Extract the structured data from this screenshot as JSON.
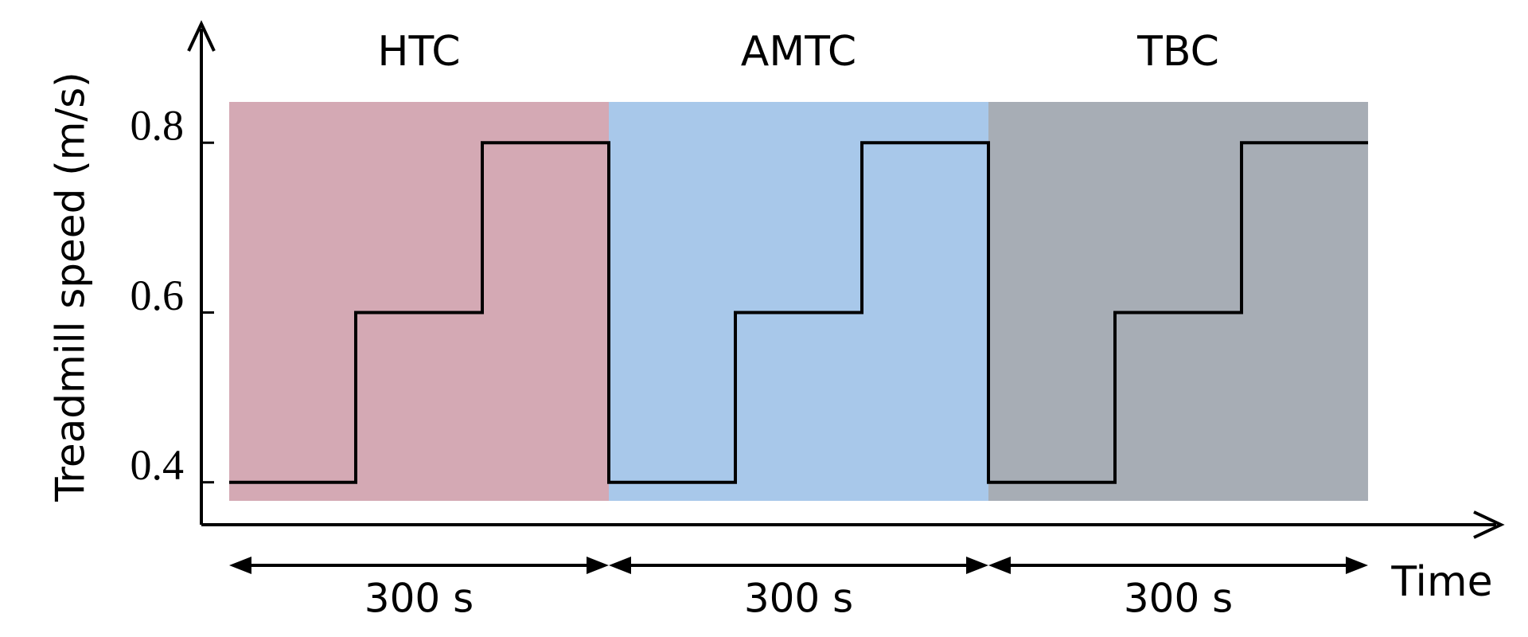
{
  "chart_data": {
    "type": "line",
    "y_label": "Treadmill  speed (m/s)",
    "x_label": "Time",
    "x": [
      0,
      100,
      100,
      200,
      200,
      300,
      300,
      400,
      400,
      500,
      500,
      600,
      600,
      700,
      700,
      800,
      800,
      900
    ],
    "values": [
      0.4,
      0.4,
      0.6,
      0.6,
      0.8,
      0.8,
      0.4,
      0.4,
      0.6,
      0.6,
      0.8,
      0.8,
      0.4,
      0.4,
      0.6,
      0.6,
      0.8,
      0.8
    ],
    "color": "#000000",
    "xlim": [
      -22,
      1005
    ],
    "ylim": [
      0.35,
      0.94
    ],
    "yticks": [
      0.4,
      0.6,
      0.8
    ],
    "phases": [
      {
        "label": "HTC",
        "start": 0,
        "end": 300,
        "color": "#d4a9b4",
        "duration_label": "300 s"
      },
      {
        "label": "AMTC",
        "start": 300,
        "end": 600,
        "color": "#a8c8ea",
        "duration_label": "300 s"
      },
      {
        "label": "TBC",
        "start": 600,
        "end": 900,
        "color": "#a7adb5",
        "duration_label": "300 s"
      }
    ]
  }
}
